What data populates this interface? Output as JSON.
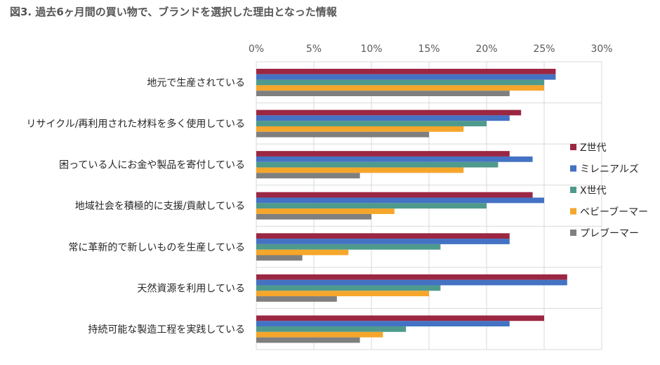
{
  "title": "図3. 過去6ヶ月間の買い物で、ブランドを選択した理由となった情報",
  "chart_data": {
    "type": "bar",
    "orientation": "horizontal",
    "title": "図3. 過去6ヶ月間の買い物で、ブランドを選択した理由となった情報",
    "xlim": [
      0,
      30
    ],
    "x_ticks": [
      0,
      5,
      10,
      15,
      20,
      25,
      30
    ],
    "tick_suffix": "%",
    "x_axis_position": "top",
    "grid": true,
    "legend_position": "right",
    "categories": [
      "地元で生産されている",
      "リサイクル/再利用された材料を多く使用している",
      "困っている人にお金や製品を寄付している",
      "地域社会を積極的に支援/貢献している",
      "常に革新的で新しいものを生産している",
      "天然資源を利用している",
      "持続可能な製造工程を実践している"
    ],
    "series": [
      {
        "name": "Z世代",
        "color": "#9B2743",
        "values": [
          26,
          23,
          22,
          24,
          22,
          27,
          25
        ]
      },
      {
        "name": "ミレニアルズ",
        "color": "#4472C4",
        "values": [
          26,
          22,
          24,
          25,
          22,
          27,
          22
        ]
      },
      {
        "name": "X世代",
        "color": "#4E9A8C",
        "values": [
          25,
          20,
          21,
          20,
          16,
          16,
          13
        ]
      },
      {
        "name": "ベビーブーマー",
        "color": "#F5A62B",
        "values": [
          25,
          18,
          18,
          12,
          8,
          15,
          11
        ]
      },
      {
        "name": "プレブーマー",
        "color": "#7F7F7F",
        "values": [
          22,
          15,
          9,
          10,
          4,
          7,
          9
        ]
      }
    ]
  }
}
